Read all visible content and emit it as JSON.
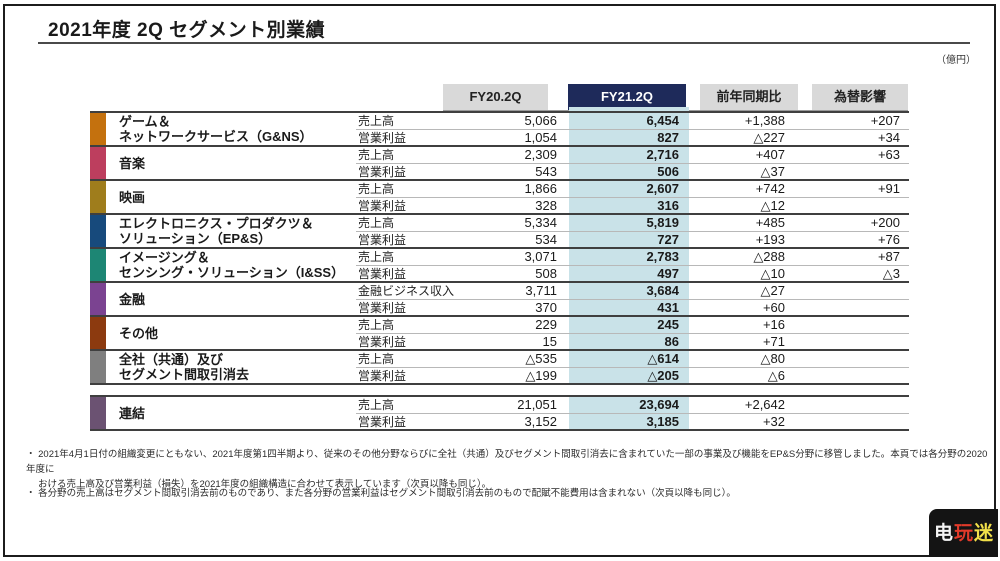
{
  "title": "2021年度 2Q セグメント別業績",
  "unit_label": "（億円）",
  "colors": {
    "navy": "#1e2a5a",
    "band": "#c9e2e8",
    "header_bg": "#d9d9d9"
  },
  "columns": {
    "fy20": "FY20.2Q",
    "fy21": "FY21.2Q",
    "yoy": "前年同期比",
    "fx": "為替影響"
  },
  "rows": [
    {
      "name_lines": [
        "ゲーム＆",
        "ネットワークサービス（G&NS）"
      ],
      "color": "#c4710e",
      "metrics": [
        {
          "label": "売上高",
          "fy20": "5,066",
          "fy21": "6,454",
          "yoy": "+1,388",
          "fx": "+207"
        },
        {
          "label": "営業利益",
          "fy20": "1,054",
          "fy21": "827",
          "yoy": "△227",
          "fx": "+34"
        }
      ]
    },
    {
      "name_lines": [
        "音楽"
      ],
      "color": "#bd3e5e",
      "metrics": [
        {
          "label": "売上高",
          "fy20": "2,309",
          "fy21": "2,716",
          "yoy": "+407",
          "fx": "+63"
        },
        {
          "label": "営業利益",
          "fy20": "543",
          "fy21": "506",
          "yoy": "△37",
          "fx": ""
        }
      ]
    },
    {
      "name_lines": [
        "映画"
      ],
      "color": "#9f7d1c",
      "metrics": [
        {
          "label": "売上高",
          "fy20": "1,866",
          "fy21": "2,607",
          "yoy": "+742",
          "fx": "+91"
        },
        {
          "label": "営業利益",
          "fy20": "328",
          "fy21": "316",
          "yoy": "△12",
          "fx": ""
        }
      ]
    },
    {
      "name_lines": [
        "エレクトロニクス・プロダクツ＆",
        "ソリューション（EP&S）"
      ],
      "color": "#174a7c",
      "metrics": [
        {
          "label": "売上高",
          "fy20": "5,334",
          "fy21": "5,819",
          "yoy": "+485",
          "fx": "+200"
        },
        {
          "label": "営業利益",
          "fy20": "534",
          "fy21": "727",
          "yoy": "+193",
          "fx": "+76"
        }
      ]
    },
    {
      "name_lines": [
        "イメージング＆",
        "センシング・ソリューション（I&SS）"
      ],
      "color": "#1d8674",
      "metrics": [
        {
          "label": "売上高",
          "fy20": "3,071",
          "fy21": "2,783",
          "yoy": "△288",
          "fx": "+87"
        },
        {
          "label": "営業利益",
          "fy20": "508",
          "fy21": "497",
          "yoy": "△10",
          "fx": "△3"
        }
      ]
    },
    {
      "name_lines": [
        "金融"
      ],
      "color": "#7b4391",
      "metrics": [
        {
          "label": "金融ビジネス収入",
          "fy20": "3,711",
          "fy21": "3,684",
          "yoy": "△27",
          "fx": ""
        },
        {
          "label": "営業利益",
          "fy20": "370",
          "fy21": "431",
          "yoy": "+60",
          "fx": ""
        }
      ]
    },
    {
      "name_lines": [
        "その他"
      ],
      "color": "#8c3a0f",
      "metrics": [
        {
          "label": "売上高",
          "fy20": "229",
          "fy21": "245",
          "yoy": "+16",
          "fx": ""
        },
        {
          "label": "営業利益",
          "fy20": "15",
          "fy21": "86",
          "yoy": "+71",
          "fx": ""
        }
      ]
    },
    {
      "name_lines": [
        "全社（共通）及び",
        "セグメント間取引消去"
      ],
      "color": "#7f7f7f",
      "metrics": [
        {
          "label": "売上高",
          "fy20": "△535",
          "fy21": "△614",
          "yoy": "△80",
          "fx": ""
        },
        {
          "label": "営業利益",
          "fy20": "△199",
          "fy21": "△205",
          "yoy": "△6",
          "fx": ""
        }
      ]
    }
  ],
  "total_row": {
    "name_lines": [
      "連結"
    ],
    "color": "#6b5272",
    "metrics": [
      {
        "label": "売上高",
        "fy20": "21,051",
        "fy21": "23,694",
        "yoy": "+2,642",
        "fx": ""
      },
      {
        "label": "営業利益",
        "fy20": "3,152",
        "fy21": "3,185",
        "yoy": "+32",
        "fx": ""
      }
    ]
  },
  "footnotes": [
    {
      "lines": [
        "・ 2021年4月1日付の組織変更にともない、2021年度第1四半期より、従来のその他分野ならびに全社（共通）及びセグメント間取引消去に含まれていた一部の事業及び機能をEP&S分野に移管しました。本頁では各分野の2020年度に",
        "おける売上高及び営業利益（損失）を2021年度の組織構造に合わせて表示しています（次頁以降も同じ）。"
      ]
    },
    {
      "lines": [
        "・ 各分野の売上高はセグメント間取引消去前のものであり、また各分野の営業利益はセグメント間取引消去前のもので配賦不能費用は含まれない（次頁以降も同じ）。"
      ]
    }
  ],
  "watermark": {
    "char1": "电",
    "char2": "玩",
    "char3": "迷"
  }
}
